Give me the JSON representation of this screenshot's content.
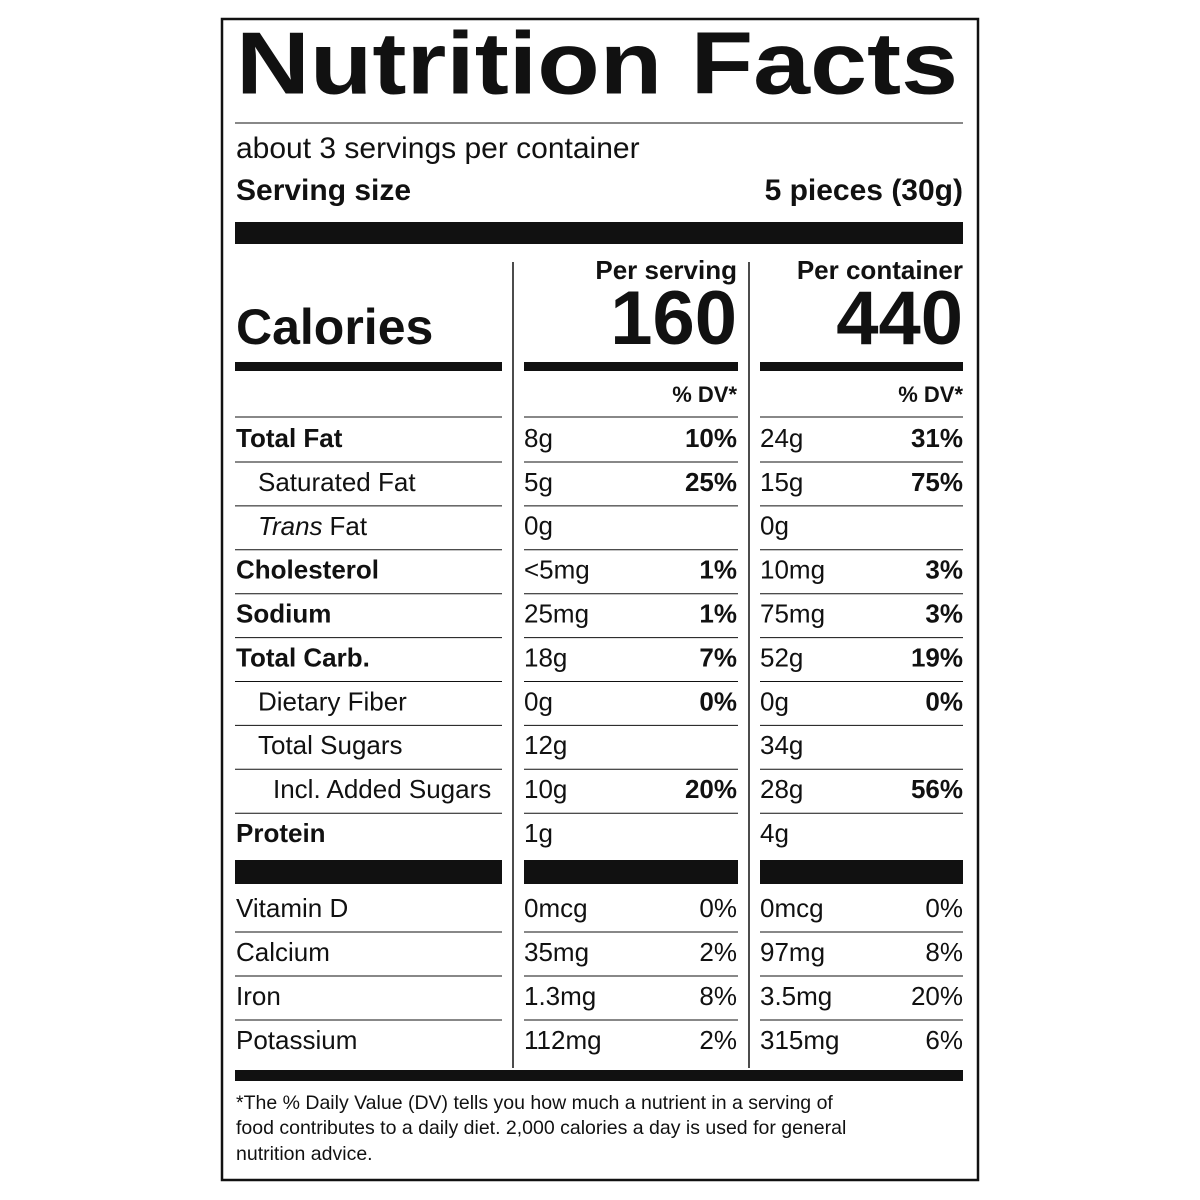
{
  "title": "Nutrition Facts",
  "servings": "about 3 servings per container",
  "serving_size": {
    "label": "Serving size",
    "value": "5 pieces (30g)"
  },
  "columns": [
    "Per serving",
    "Per container"
  ],
  "calories": {
    "label": "Calories",
    "values": [
      "160",
      "440"
    ]
  },
  "dv_header": "% DV*",
  "nutrients": [
    {
      "name": "Total Fat",
      "bold": true,
      "indent": 0,
      "serving": [
        "8g",
        "10%"
      ],
      "container": [
        "24g",
        "31%"
      ]
    },
    {
      "name": "Saturated Fat",
      "bold": false,
      "indent": 1,
      "serving": [
        "5g",
        "25%"
      ],
      "container": [
        "15g",
        "75%"
      ]
    },
    {
      "name_italic": "Trans",
      "name": "Fat",
      "bold": false,
      "indent": 1,
      "serving": [
        "0g",
        null
      ],
      "container": [
        "0g",
        null
      ]
    },
    {
      "name": "Cholesterol",
      "bold": true,
      "indent": 0,
      "serving": [
        "<5mg",
        "1%"
      ],
      "container": [
        "10mg",
        "3%"
      ]
    },
    {
      "name": "Sodium",
      "bold": true,
      "indent": 0,
      "serving": [
        "25mg",
        "1%"
      ],
      "container": [
        "75mg",
        "3%"
      ]
    },
    {
      "name": "Total Carb.",
      "bold": true,
      "indent": 0,
      "serving": [
        "18g",
        "7%"
      ],
      "container": [
        "52g",
        "19%"
      ]
    },
    {
      "name": "Dietary Fiber",
      "bold": false,
      "indent": 1,
      "serving": [
        "0g",
        "0%"
      ],
      "container": [
        "0g",
        "0%"
      ]
    },
    {
      "name": "Total Sugars",
      "bold": false,
      "indent": 1,
      "serving": [
        "12g",
        null
      ],
      "container": [
        "34g",
        null
      ]
    },
    {
      "name": "Incl. Added Sugars",
      "bold": false,
      "indent": 2,
      "serving": [
        "10g",
        "20%"
      ],
      "container": [
        "28g",
        "56%"
      ]
    },
    {
      "name": "Protein",
      "bold": true,
      "indent": 0,
      "serving": [
        "1g",
        null
      ],
      "container": [
        "4g",
        null
      ]
    }
  ],
  "vitamins": [
    {
      "name": "Vitamin D",
      "serving": [
        "0mcg",
        "0%"
      ],
      "container": [
        "0mcg",
        "0%"
      ]
    },
    {
      "name": "Calcium",
      "serving": [
        "35mg",
        "2%"
      ],
      "container": [
        "97mg",
        "8%"
      ]
    },
    {
      "name": "Iron",
      "serving": [
        "1.3mg",
        "8%"
      ],
      "container": [
        "3.5mg",
        "20%"
      ]
    },
    {
      "name": "Potassium",
      "serving": [
        "112mg",
        "2%"
      ],
      "container": [
        "315mg",
        "6%"
      ]
    }
  ],
  "footnote": [
    "*The % Daily Value (DV) tells you how much a nutrient in a serving of",
    "food contributes to a daily diet. 2,000 calories a day is used for general",
    "nutrition advice."
  ]
}
